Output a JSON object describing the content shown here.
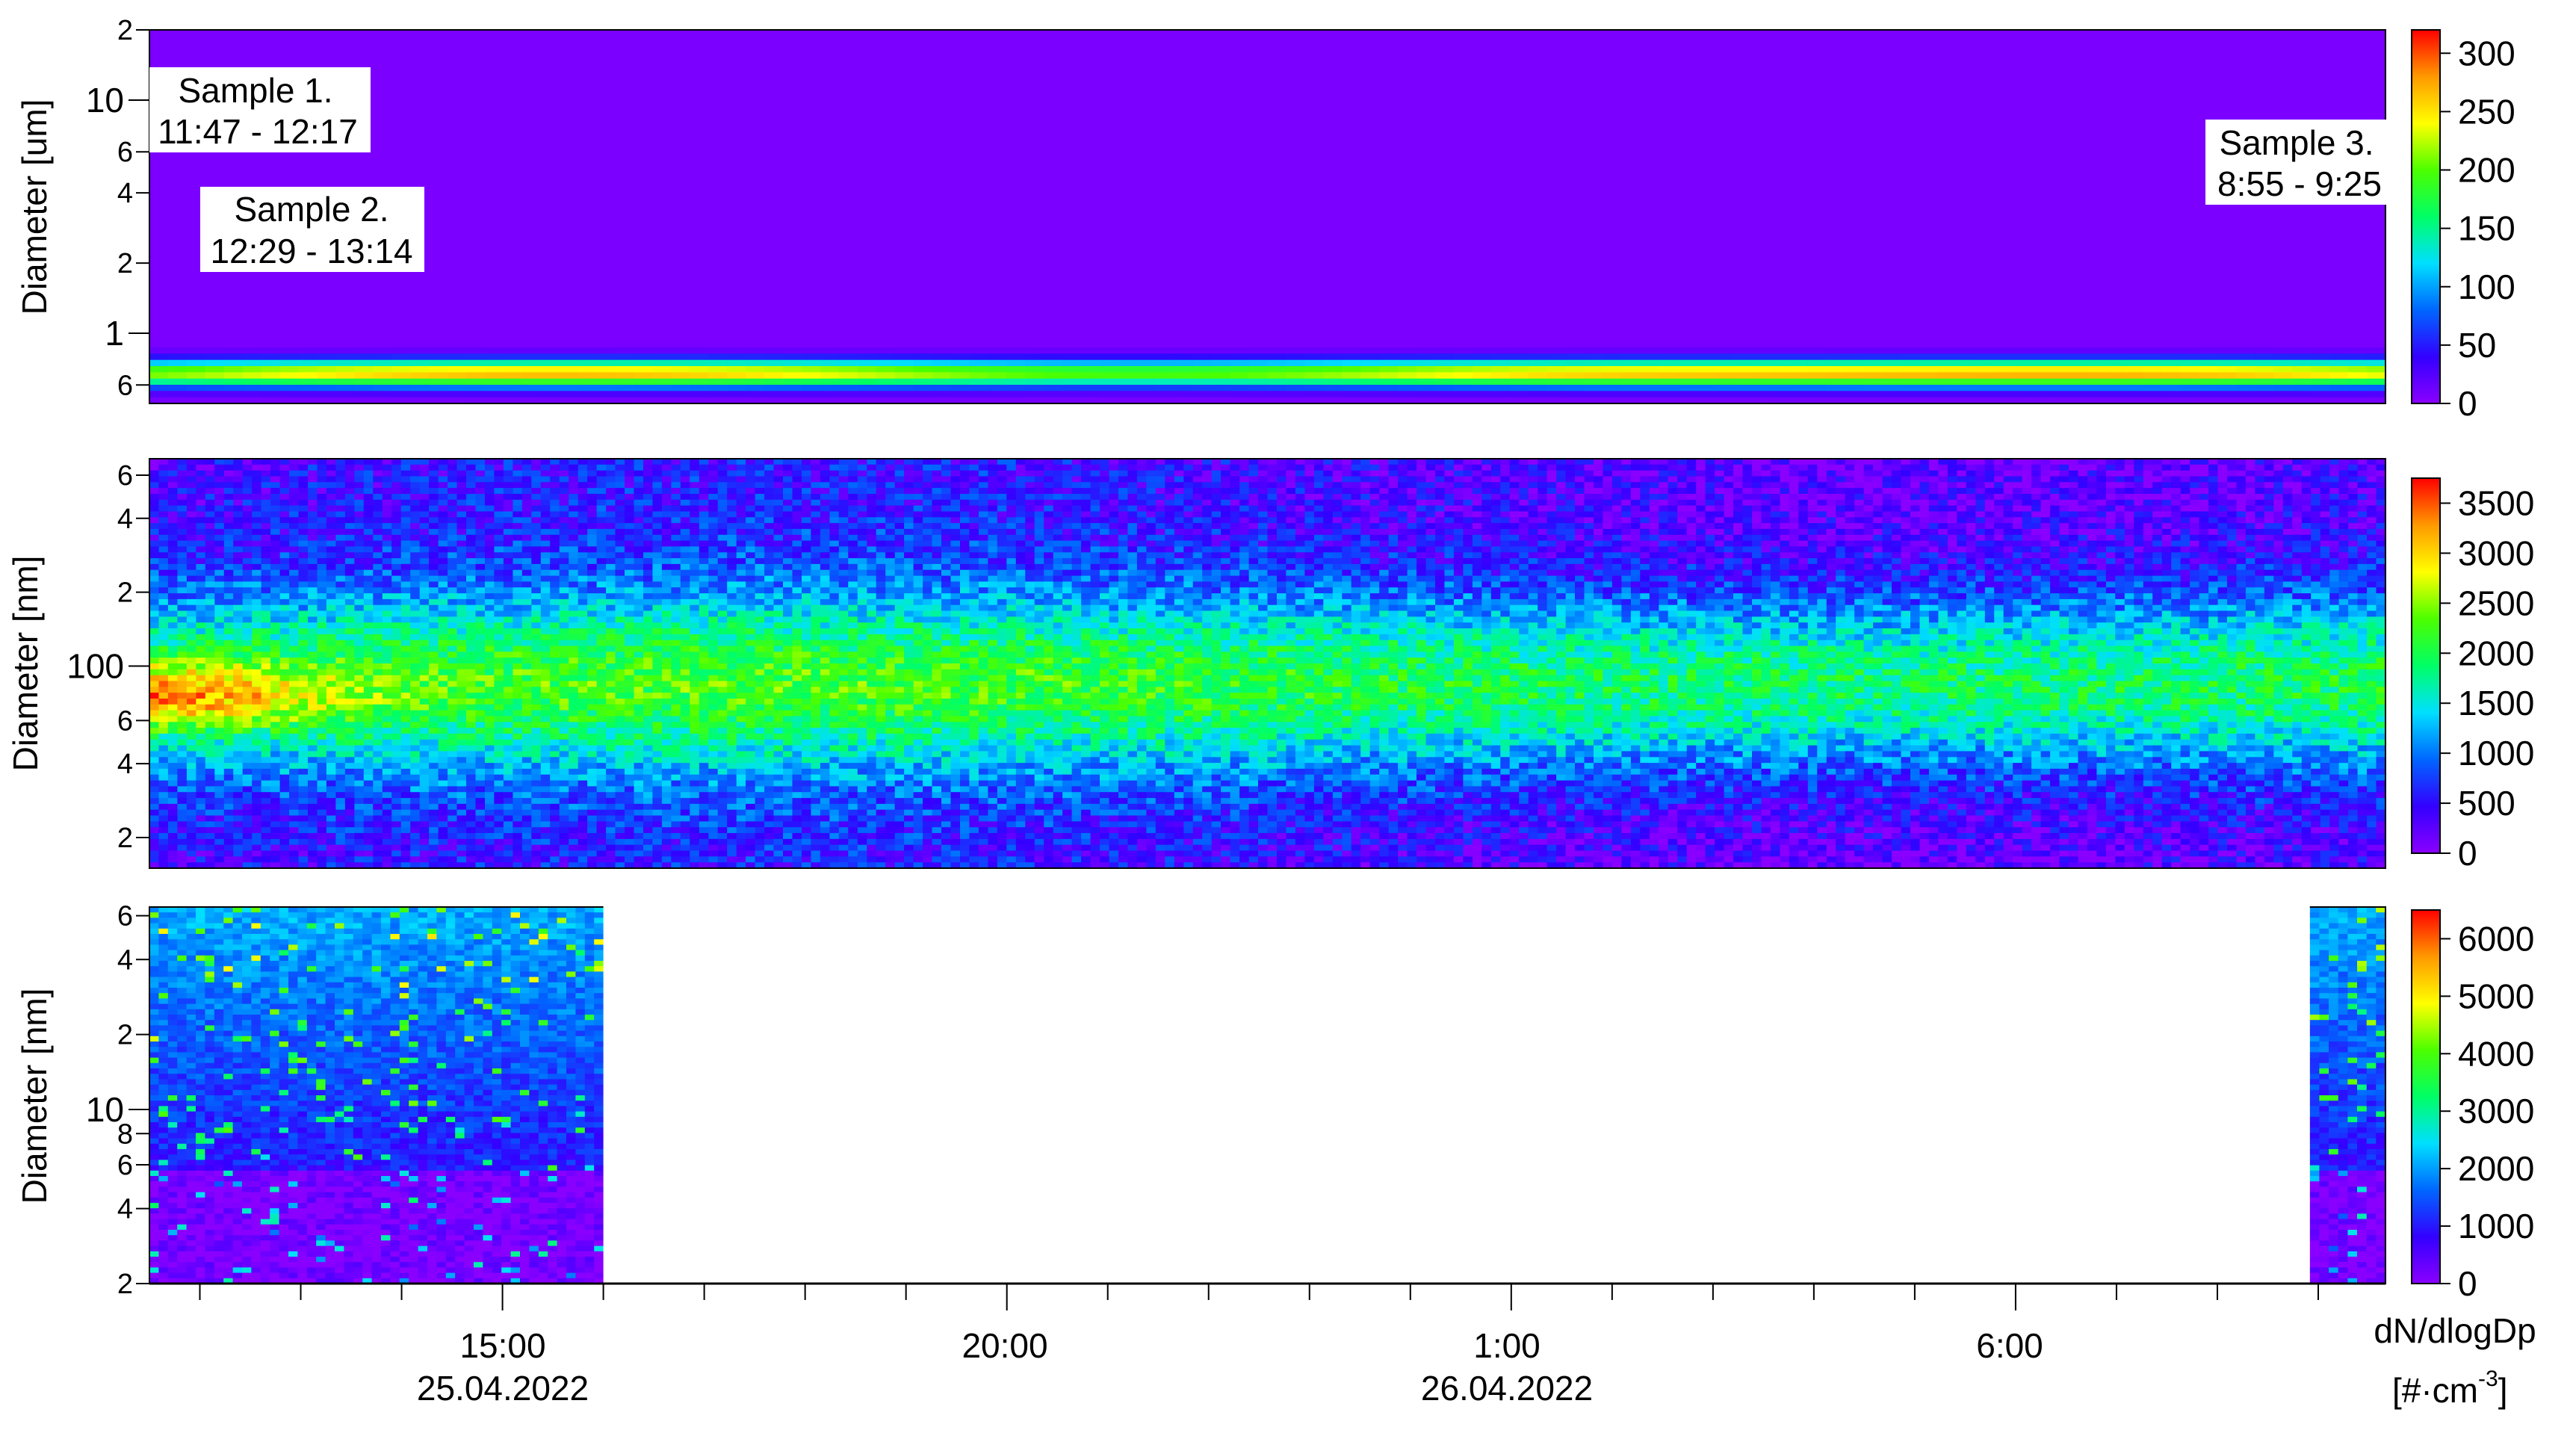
{
  "colors": {
    "scale": [
      "#8a00ff",
      "#3300ff",
      "#0066ff",
      "#00dfff",
      "#00ff66",
      "#4cff00",
      "#ffff00",
      "#ff9900",
      "#ff0000"
    ],
    "missing": "#ffffff"
  },
  "chart_data": [
    {
      "type": "heatmap",
      "panel": "top",
      "ylabel": "Diameter [um]",
      "y_scale": "log",
      "ylim": [
        0.5,
        20
      ],
      "y_major_ticks": [
        {
          "v": 1,
          "label": "1"
        },
        {
          "v": 10,
          "label": "10"
        }
      ],
      "y_minor_ticks": [
        {
          "v": 0.6,
          "label": "6"
        },
        {
          "v": 2,
          "label": "2"
        },
        {
          "v": 4,
          "label": "4"
        },
        {
          "v": 6,
          "label": "6"
        },
        {
          "v": 20,
          "label": "2"
        }
      ],
      "colorbar": {
        "min": 0,
        "max": 320,
        "ticks": [
          0,
          50,
          100,
          150,
          200,
          250,
          300
        ]
      },
      "annotations": [
        {
          "lines": [
            "Sample 1.",
            "11:47 - 12:17"
          ]
        },
        {
          "lines": [
            "Sample 2.",
            "12:29 - 13:14"
          ]
        },
        {
          "lines": [
            "Sample 3.",
            "8:55 - 9:25"
          ]
        }
      ]
    },
    {
      "type": "heatmap",
      "panel": "middle",
      "ylabel": "Diameter [nm]",
      "y_scale": "log",
      "ylim": [
        15,
        700
      ],
      "y_major_ticks": [
        {
          "v": 100,
          "label": "100"
        }
      ],
      "y_minor_ticks": [
        {
          "v": 20,
          "label": "2"
        },
        {
          "v": 40,
          "label": "4"
        },
        {
          "v": 60,
          "label": "6"
        },
        {
          "v": 200,
          "label": "2"
        },
        {
          "v": 400,
          "label": "4"
        },
        {
          "v": 600,
          "label": "6"
        }
      ],
      "colorbar": {
        "min": 0,
        "max": 3750,
        "ticks": [
          0,
          500,
          1000,
          1500,
          2000,
          2500,
          3000,
          3500
        ]
      }
    },
    {
      "type": "heatmap",
      "panel": "bottom",
      "ylabel": "Diameter [nm]",
      "y_scale": "log",
      "ylim": [
        2,
        65
      ],
      "y_major_ticks": [
        {
          "v": 10,
          "label": "10"
        }
      ],
      "y_minor_ticks": [
        {
          "v": 2,
          "label": "2"
        },
        {
          "v": 4,
          "label": "4"
        },
        {
          "v": 6,
          "label": "6"
        },
        {
          "v": 8,
          "label": "8"
        },
        {
          "v": 20,
          "label": "2"
        },
        {
          "v": 40,
          "label": "4"
        },
        {
          "v": 60,
          "label": "6"
        }
      ],
      "data_segments": [
        [
          "11:30",
          "16:00"
        ],
        [
          "8:55",
          "9:40"
        ]
      ],
      "colorbar": {
        "min": 0,
        "max": 6500,
        "ticks": [
          0,
          1000,
          2000,
          3000,
          4000,
          5000,
          6000
        ]
      }
    }
  ],
  "time_axis": {
    "start": "25.04.2022 11:30",
    "end": "26.04.2022 9:40",
    "ticks": [
      {
        "time": "15:00",
        "date": "25.04.2022"
      },
      {
        "time": "20:00",
        "date": ""
      },
      {
        "time": "1:00",
        "date": "26.04.2022"
      },
      {
        "time": "6:00",
        "date": ""
      }
    ]
  },
  "colorbar_label": {
    "text": "dN/dlogDp",
    "unit_base": "[#·cm",
    "unit_exp": "-3",
    "unit_close": "]"
  }
}
